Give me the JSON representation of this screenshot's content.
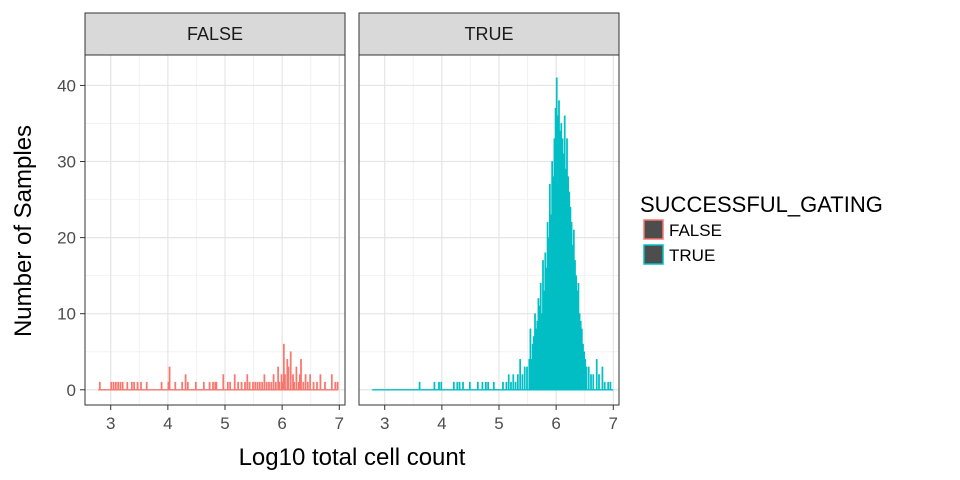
{
  "chart_data": {
    "type": "histogram",
    "xlabel": "Log10 total cell count",
    "ylabel": "Number of Samples",
    "xlim": [
      2.55,
      7.1
    ],
    "ylim": [
      -2,
      44
    ],
    "x_ticks": [
      3,
      4,
      5,
      6,
      7
    ],
    "y_ticks": [
      0,
      10,
      20,
      30,
      40
    ],
    "bin_width": 0.02,
    "legend": {
      "title": "SUCCESSFUL_GATING",
      "position": "right",
      "items": [
        {
          "label": "FALSE",
          "color": "#F8766D"
        },
        {
          "label": "TRUE",
          "color": "#00BFC4"
        }
      ]
    },
    "panels": [
      {
        "strip": "FALSE",
        "color": "#F8766D",
        "x_range": [
          2.78,
          6.98
        ],
        "bars": [
          [
            2.8,
            1
          ],
          [
            3.0,
            1
          ],
          [
            3.04,
            1
          ],
          [
            3.08,
            1
          ],
          [
            3.12,
            1
          ],
          [
            3.16,
            1
          ],
          [
            3.2,
            1
          ],
          [
            3.28,
            1
          ],
          [
            3.36,
            1
          ],
          [
            3.4,
            1
          ],
          [
            3.46,
            1
          ],
          [
            3.52,
            1
          ],
          [
            3.62,
            1
          ],
          [
            3.88,
            1
          ],
          [
            4.0,
            1
          ],
          [
            4.02,
            3
          ],
          [
            4.12,
            1
          ],
          [
            4.24,
            1
          ],
          [
            4.3,
            2
          ],
          [
            4.34,
            1
          ],
          [
            4.48,
            1
          ],
          [
            4.62,
            1
          ],
          [
            4.72,
            1
          ],
          [
            4.78,
            1
          ],
          [
            4.82,
            1
          ],
          [
            4.84,
            1
          ],
          [
            4.96,
            2
          ],
          [
            5.04,
            1
          ],
          [
            5.08,
            1
          ],
          [
            5.16,
            2
          ],
          [
            5.22,
            1
          ],
          [
            5.28,
            1
          ],
          [
            5.34,
            1
          ],
          [
            5.38,
            2
          ],
          [
            5.42,
            1
          ],
          [
            5.48,
            1
          ],
          [
            5.52,
            1
          ],
          [
            5.56,
            1
          ],
          [
            5.6,
            1
          ],
          [
            5.64,
            1
          ],
          [
            5.68,
            2
          ],
          [
            5.72,
            1
          ],
          [
            5.76,
            1
          ],
          [
            5.8,
            1
          ],
          [
            5.84,
            2
          ],
          [
            5.88,
            1
          ],
          [
            5.92,
            3
          ],
          [
            5.94,
            1
          ],
          [
            5.98,
            2
          ],
          [
            6.0,
            1
          ],
          [
            6.02,
            6
          ],
          [
            6.04,
            2
          ],
          [
            6.08,
            4
          ],
          [
            6.1,
            3
          ],
          [
            6.14,
            5
          ],
          [
            6.18,
            2
          ],
          [
            6.2,
            1
          ],
          [
            6.24,
            3
          ],
          [
            6.28,
            1
          ],
          [
            6.3,
            2
          ],
          [
            6.32,
            4
          ],
          [
            6.36,
            1
          ],
          [
            6.4,
            2
          ],
          [
            6.44,
            1
          ],
          [
            6.48,
            2
          ],
          [
            6.54,
            1
          ],
          [
            6.6,
            1
          ],
          [
            6.66,
            2
          ],
          [
            6.74,
            1
          ],
          [
            6.86,
            2
          ],
          [
            6.92,
            1
          ],
          [
            6.96,
            1
          ]
        ]
      },
      {
        "strip": "TRUE",
        "color": "#00BFC4",
        "x_range": [
          2.78,
          7.0
        ],
        "bars": [
          [
            3.6,
            1
          ],
          [
            3.86,
            1
          ],
          [
            3.94,
            1
          ],
          [
            3.98,
            1
          ],
          [
            4.2,
            1
          ],
          [
            4.26,
            1
          ],
          [
            4.3,
            1
          ],
          [
            4.36,
            1
          ],
          [
            4.48,
            1
          ],
          [
            4.62,
            1
          ],
          [
            4.7,
            1
          ],
          [
            4.76,
            1
          ],
          [
            4.8,
            1
          ],
          [
            4.9,
            1
          ],
          [
            5.06,
            1
          ],
          [
            5.12,
            1
          ],
          [
            5.16,
            2
          ],
          [
            5.2,
            1
          ],
          [
            5.24,
            2
          ],
          [
            5.28,
            1
          ],
          [
            5.32,
            2
          ],
          [
            5.36,
            4
          ],
          [
            5.4,
            2
          ],
          [
            5.44,
            3
          ],
          [
            5.48,
            3
          ],
          [
            5.52,
            4
          ],
          [
            5.54,
            8
          ],
          [
            5.56,
            4
          ],
          [
            5.58,
            6
          ],
          [
            5.6,
            7
          ],
          [
            5.62,
            10
          ],
          [
            5.64,
            8
          ],
          [
            5.66,
            9
          ],
          [
            5.68,
            12
          ],
          [
            5.7,
            11
          ],
          [
            5.72,
            14
          ],
          [
            5.74,
            10
          ],
          [
            5.76,
            17
          ],
          [
            5.78,
            13
          ],
          [
            5.8,
            18
          ],
          [
            5.82,
            16
          ],
          [
            5.84,
            22
          ],
          [
            5.86,
            20
          ],
          [
            5.88,
            27
          ],
          [
            5.9,
            23
          ],
          [
            5.92,
            30
          ],
          [
            5.94,
            28
          ],
          [
            5.96,
            33
          ],
          [
            5.98,
            37
          ],
          [
            6.0,
            41
          ],
          [
            6.02,
            36
          ],
          [
            6.04,
            38
          ],
          [
            6.06,
            34
          ],
          [
            6.08,
            35
          ],
          [
            6.1,
            33
          ],
          [
            6.12,
            31
          ],
          [
            6.14,
            36
          ],
          [
            6.16,
            29
          ],
          [
            6.18,
            33
          ],
          [
            6.2,
            28
          ],
          [
            6.22,
            26
          ],
          [
            6.24,
            24
          ],
          [
            6.26,
            22
          ],
          [
            6.28,
            19
          ],
          [
            6.3,
            21
          ],
          [
            6.32,
            17
          ],
          [
            6.34,
            15
          ],
          [
            6.36,
            13
          ],
          [
            6.38,
            14
          ],
          [
            6.4,
            10
          ],
          [
            6.42,
            9
          ],
          [
            6.44,
            8
          ],
          [
            6.46,
            6
          ],
          [
            6.48,
            5
          ],
          [
            6.5,
            4
          ],
          [
            6.52,
            3
          ],
          [
            6.56,
            3
          ],
          [
            6.6,
            2
          ],
          [
            6.64,
            2
          ],
          [
            6.7,
            4
          ],
          [
            6.74,
            2
          ],
          [
            6.8,
            3
          ],
          [
            6.84,
            1
          ],
          [
            6.9,
            1
          ],
          [
            6.94,
            1
          ]
        ]
      }
    ]
  }
}
